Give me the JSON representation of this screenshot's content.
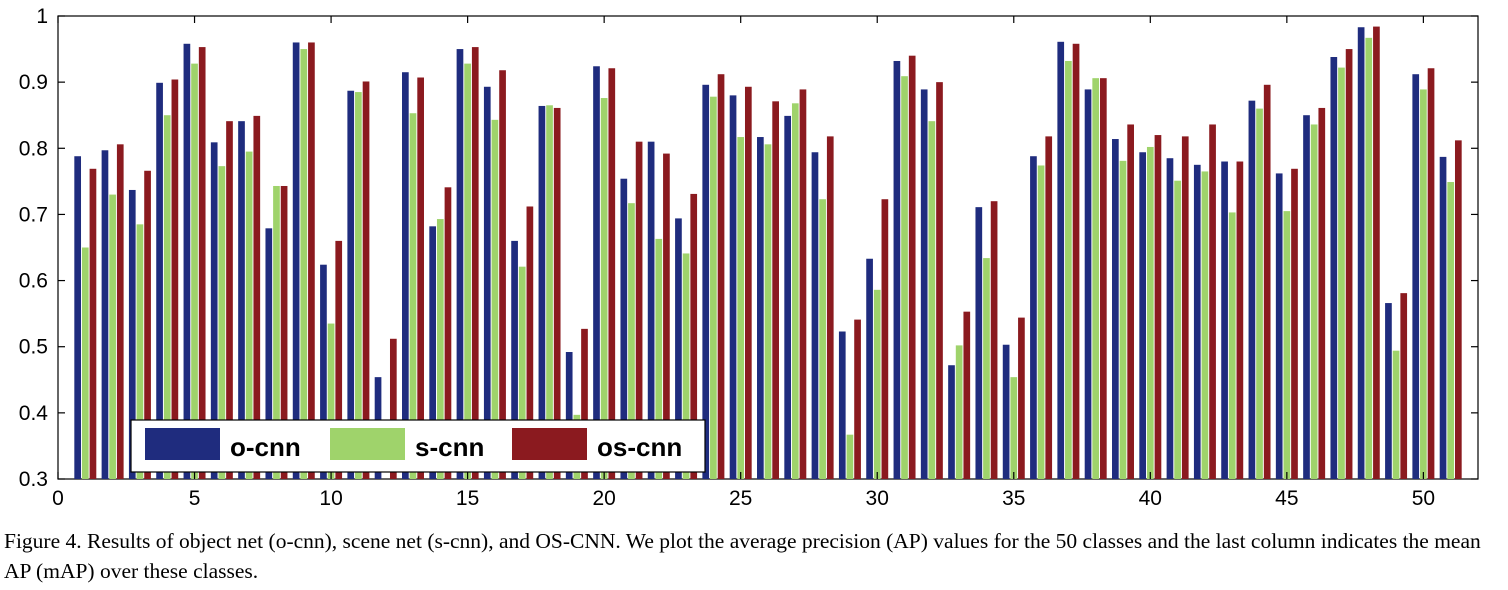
{
  "chart_data": {
    "type": "bar",
    "ylim": [
      0.3,
      1.0
    ],
    "xlim": [
      0,
      52
    ],
    "x_ticks": [
      "0",
      "5",
      "10",
      "15",
      "20",
      "25",
      "30",
      "35",
      "40",
      "45",
      "50"
    ],
    "y_ticks": [
      "0.3",
      "0.4",
      "0.5",
      "0.6",
      "0.7",
      "0.8",
      "0.9",
      "1"
    ],
    "legend_position": "bottom-left",
    "series": [
      {
        "name": "o-cnn",
        "color": "#1f2c7e",
        "values": [
          0.788,
          0.797,
          0.737,
          0.899,
          0.958,
          0.809,
          0.841,
          0.679,
          0.96,
          0.624,
          0.887,
          0.454,
          0.915,
          0.682,
          0.95,
          0.893,
          0.66,
          0.864,
          0.492,
          0.924,
          0.754,
          0.81,
          0.694,
          0.896,
          0.88,
          0.817,
          0.849,
          0.794,
          0.523,
          0.633,
          0.932,
          0.889,
          0.472,
          0.711,
          0.503,
          0.788,
          0.961,
          0.889,
          0.814,
          0.794,
          0.785,
          0.775,
          0.78,
          0.872,
          0.762,
          0.85,
          0.938,
          0.983,
          0.566,
          0.912,
          0.787
        ]
      },
      {
        "name": "s-cnn",
        "color": "#9fd36b",
        "values": [
          0.65,
          0.73,
          0.685,
          0.85,
          0.928,
          0.773,
          0.795,
          0.743,
          0.95,
          0.535,
          0.885,
          0.3,
          0.853,
          0.693,
          0.928,
          0.843,
          0.621,
          0.865,
          0.397,
          0.876,
          0.717,
          0.663,
          0.641,
          0.878,
          0.817,
          0.806,
          0.868,
          0.723,
          0.367,
          0.586,
          0.909,
          0.841,
          0.502,
          0.634,
          0.454,
          0.774,
          0.932,
          0.906,
          0.781,
          0.802,
          0.751,
          0.765,
          0.703,
          0.86,
          0.705,
          0.836,
          0.922,
          0.967,
          0.494,
          0.889,
          0.749
        ]
      },
      {
        "name": "os-cnn",
        "color": "#8b1a1f",
        "values": [
          0.769,
          0.806,
          0.766,
          0.904,
          0.953,
          0.841,
          0.849,
          0.743,
          0.96,
          0.66,
          0.901,
          0.512,
          0.907,
          0.741,
          0.953,
          0.918,
          0.712,
          0.861,
          0.527,
          0.921,
          0.81,
          0.792,
          0.731,
          0.912,
          0.893,
          0.871,
          0.889,
          0.818,
          0.541,
          0.723,
          0.94,
          0.9,
          0.553,
          0.72,
          0.544,
          0.818,
          0.958,
          0.906,
          0.836,
          0.82,
          0.818,
          0.836,
          0.78,
          0.896,
          0.769,
          0.861,
          0.95,
          0.984,
          0.581,
          0.921,
          0.812
        ]
      }
    ]
  },
  "caption": "Figure 4. Results of object net (o-cnn), scene net (s-cnn), and OS-CNN. We plot the average precision (AP) values for the 50 classes and the last column indicates the mean AP (mAP) over these classes."
}
